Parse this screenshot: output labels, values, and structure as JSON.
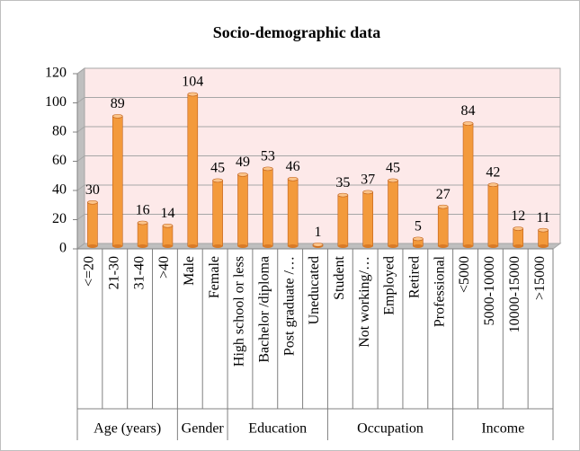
{
  "chart_data": {
    "type": "bar",
    "title": "Socio-demographic  data",
    "color": "#f39a3c",
    "ylim": [
      0,
      120
    ],
    "yticks": [
      0,
      20,
      40,
      60,
      80,
      100,
      120
    ],
    "grid": true,
    "groups": [
      {
        "name": "Age (years)",
        "categories": [
          "<=20",
          "21-30",
          "31-40",
          ">40"
        ],
        "values": [
          30,
          89,
          16,
          14
        ]
      },
      {
        "name": "Gender",
        "categories": [
          "Male",
          "Female"
        ],
        "values": [
          104,
          45
        ]
      },
      {
        "name": "Education",
        "categories": [
          "High school or less",
          "Bachelor /diploma",
          "Post graduate /…",
          "Uneducated"
        ],
        "values": [
          49,
          53,
          46,
          1
        ]
      },
      {
        "name": "Occupation",
        "categories": [
          "Student",
          "Not working/…",
          "Employed",
          "Retired",
          "Professional"
        ],
        "values": [
          35,
          37,
          45,
          5,
          27
        ]
      },
      {
        "name": "Income",
        "categories": [
          "<5000",
          "5000-10000",
          "10000-15000",
          ">15000"
        ],
        "values": [
          84,
          42,
          12,
          11
        ]
      }
    ]
  }
}
